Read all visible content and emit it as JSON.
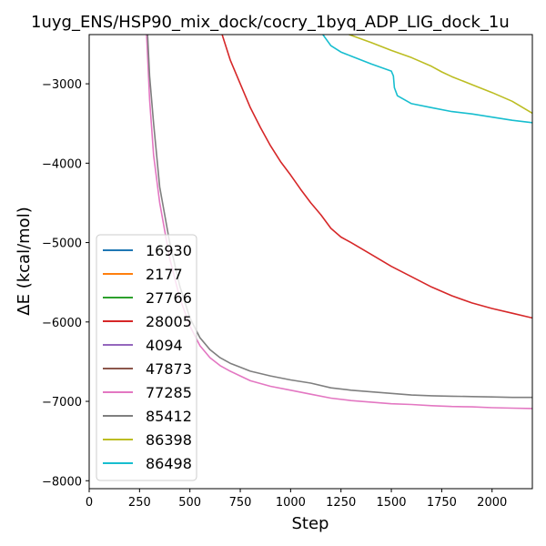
{
  "chart_data": {
    "type": "line",
    "title": "1uyg_ENS/HSP90_mix_dock/cocry_1byq_ADP_LIG_dock_1u",
    "xlabel": "Step",
    "ylabel": "ΔE (kcal/mol)",
    "xlim": [
      0,
      2200
    ],
    "ylim": [
      -8100,
      -2380
    ],
    "x_ticks": [
      0,
      250,
      500,
      750,
      1000,
      1250,
      1500,
      1750,
      2000
    ],
    "y_ticks": [
      -8000,
      -7000,
      -6000,
      -5000,
      -4000,
      -3000
    ],
    "legend_position": "lower-left",
    "grid": false,
    "series": [
      {
        "name": "16930",
        "color": "#1f77b4",
        "points": []
      },
      {
        "name": "2177",
        "color": "#ff7f0e",
        "points": []
      },
      {
        "name": "27766",
        "color": "#2ca02c",
        "points": []
      },
      {
        "name": "28005",
        "color": "#d62728",
        "points": [
          [
            660,
            -2380
          ],
          [
            700,
            -2700
          ],
          [
            750,
            -3000
          ],
          [
            800,
            -3300
          ],
          [
            850,
            -3550
          ],
          [
            900,
            -3780
          ],
          [
            950,
            -3980
          ],
          [
            1000,
            -4150
          ],
          [
            1050,
            -4330
          ],
          [
            1100,
            -4500
          ],
          [
            1150,
            -4650
          ],
          [
            1200,
            -4820
          ],
          [
            1250,
            -4930
          ],
          [
            1300,
            -5000
          ],
          [
            1400,
            -5150
          ],
          [
            1500,
            -5300
          ],
          [
            1600,
            -5430
          ],
          [
            1700,
            -5560
          ],
          [
            1800,
            -5670
          ],
          [
            1900,
            -5760
          ],
          [
            2000,
            -5830
          ],
          [
            2100,
            -5890
          ],
          [
            2200,
            -5950
          ]
        ]
      },
      {
        "name": "4094",
        "color": "#9467bd",
        "points": []
      },
      {
        "name": "47873",
        "color": "#8c564b",
        "points": []
      },
      {
        "name": "77285",
        "color": "#e377c2",
        "points": [
          [
            285,
            -2380
          ],
          [
            300,
            -3200
          ],
          [
            320,
            -3900
          ],
          [
            350,
            -4500
          ],
          [
            400,
            -5200
          ],
          [
            450,
            -5700
          ],
          [
            500,
            -6050
          ],
          [
            550,
            -6300
          ],
          [
            600,
            -6450
          ],
          [
            650,
            -6550
          ],
          [
            700,
            -6620
          ],
          [
            750,
            -6680
          ],
          [
            800,
            -6740
          ],
          [
            900,
            -6810
          ],
          [
            1000,
            -6860
          ],
          [
            1100,
            -6910
          ],
          [
            1200,
            -6960
          ],
          [
            1300,
            -6990
          ],
          [
            1400,
            -7010
          ],
          [
            1500,
            -7030
          ],
          [
            1600,
            -7040
          ],
          [
            1700,
            -7055
          ],
          [
            1800,
            -7065
          ],
          [
            1900,
            -7070
          ],
          [
            2000,
            -7080
          ],
          [
            2100,
            -7085
          ],
          [
            2200,
            -7090
          ]
        ]
      },
      {
        "name": "85412",
        "color": "#7f7f7f",
        "points": [
          [
            290,
            -2380
          ],
          [
            300,
            -2900
          ],
          [
            320,
            -3500
          ],
          [
            350,
            -4300
          ],
          [
            400,
            -5000
          ],
          [
            450,
            -5550
          ],
          [
            500,
            -5950
          ],
          [
            550,
            -6200
          ],
          [
            600,
            -6350
          ],
          [
            650,
            -6450
          ],
          [
            700,
            -6520
          ],
          [
            750,
            -6570
          ],
          [
            800,
            -6620
          ],
          [
            900,
            -6680
          ],
          [
            1000,
            -6730
          ],
          [
            1100,
            -6770
          ],
          [
            1200,
            -6830
          ],
          [
            1300,
            -6860
          ],
          [
            1400,
            -6880
          ],
          [
            1500,
            -6900
          ],
          [
            1600,
            -6920
          ],
          [
            1700,
            -6930
          ],
          [
            1800,
            -6935
          ],
          [
            1900,
            -6940
          ],
          [
            2000,
            -6945
          ],
          [
            2100,
            -6950
          ],
          [
            2200,
            -6950
          ]
        ]
      },
      {
        "name": "86398",
        "color": "#bcbd22",
        "points": [
          [
            1290,
            -2380
          ],
          [
            1400,
            -2480
          ],
          [
            1500,
            -2580
          ],
          [
            1600,
            -2670
          ],
          [
            1700,
            -2780
          ],
          [
            1750,
            -2850
          ],
          [
            1800,
            -2910
          ],
          [
            1900,
            -3010
          ],
          [
            2000,
            -3110
          ],
          [
            2100,
            -3220
          ],
          [
            2200,
            -3370
          ]
        ]
      },
      {
        "name": "86498",
        "color": "#17becf",
        "points": [
          [
            1160,
            -2380
          ],
          [
            1200,
            -2520
          ],
          [
            1250,
            -2600
          ],
          [
            1300,
            -2650
          ],
          [
            1400,
            -2750
          ],
          [
            1500,
            -2840
          ],
          [
            1510,
            -2900
          ],
          [
            1515,
            -3050
          ],
          [
            1530,
            -3150
          ],
          [
            1600,
            -3250
          ],
          [
            1700,
            -3300
          ],
          [
            1800,
            -3350
          ],
          [
            1900,
            -3380
          ],
          [
            2000,
            -3420
          ],
          [
            2100,
            -3460
          ],
          [
            2200,
            -3490
          ]
        ]
      }
    ]
  }
}
